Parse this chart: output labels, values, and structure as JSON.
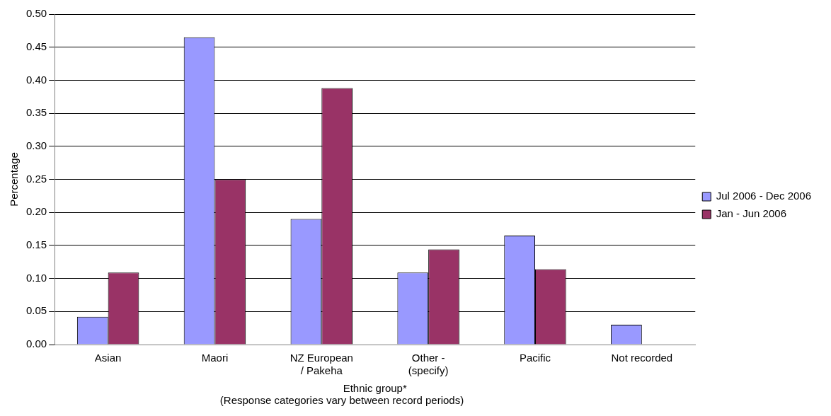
{
  "chart_data": {
    "type": "bar",
    "xlabel": "Ethnic group*",
    "ylabel": "Percentage",
    "annotations": [
      "(Response categories vary between record periods)"
    ],
    "categories": [
      "Asian",
      "Maori",
      "NZ European\n/ Pakeha",
      "Other -\n(specify)",
      "Pacific",
      "Not recorded"
    ],
    "series": [
      {
        "name": "Jul 2006 - Dec 2006",
        "color": "#9999ff",
        "values": [
          0.042,
          0.465,
          0.19,
          0.109,
          0.165,
          0.03
        ]
      },
      {
        "name": "Jan - Jun 2006",
        "color": "#993366",
        "values": [
          0.109,
          0.25,
          0.388,
          0.144,
          0.114,
          null
        ]
      }
    ],
    "ylim": [
      0,
      0.5
    ],
    "yticks": [
      {
        "value": 0,
        "label": "0.00"
      },
      {
        "value": 0.05,
        "label": "0.05"
      },
      {
        "value": 0.1,
        "label": "0.10"
      },
      {
        "value": 0.15,
        "label": "0.15"
      },
      {
        "value": 0.2,
        "label": "0.20"
      },
      {
        "value": 0.25,
        "label": "0.25"
      },
      {
        "value": 0.3,
        "label": "0.30"
      },
      {
        "value": 0.35,
        "label": "0.35"
      },
      {
        "value": 0.4,
        "label": "0.40"
      },
      {
        "value": 0.45,
        "label": "0.45"
      },
      {
        "value": 0.5,
        "label": "0.50"
      }
    ],
    "grid": "y",
    "legend": "right"
  }
}
